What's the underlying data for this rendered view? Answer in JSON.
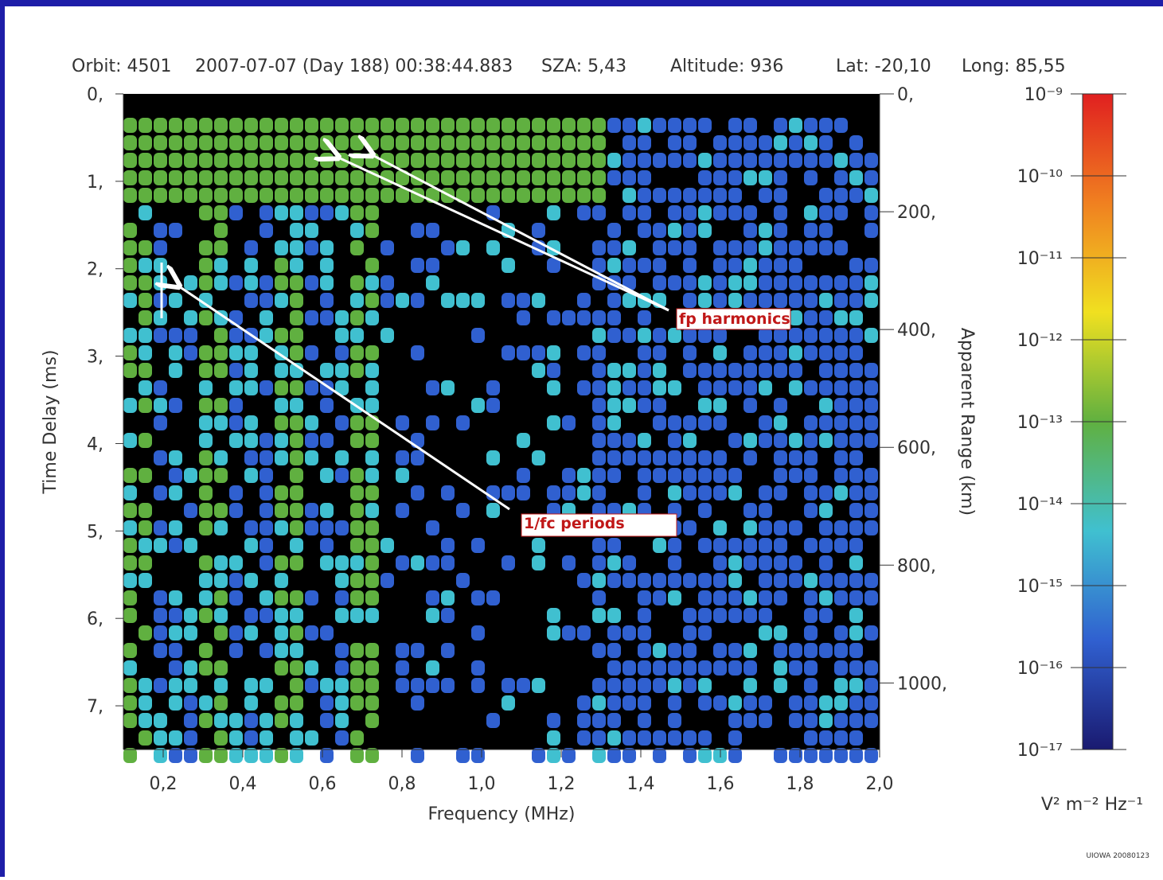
{
  "header": {
    "items": [
      "Orbit: 4501",
      "2007-07-07 (Day 188) 00:38:44.883",
      "SZA: 5,43",
      "Altitude: 936",
      "Lat: -20,10",
      "Long: 85,55"
    ]
  },
  "chart_data": {
    "type": "spectrogram",
    "x_label": "Frequency (MHz)",
    "y_label": "Time Delay (ms)",
    "y2_label": "Apparent Range (km)",
    "xlim": [
      0.1,
      2.0
    ],
    "xticks": [
      {
        "value": 0.2,
        "label": "0,2"
      },
      {
        "value": 0.4,
        "label": "0,4"
      },
      {
        "value": 0.6,
        "label": "0,6"
      },
      {
        "value": 0.8,
        "label": "0,8"
      },
      {
        "value": 1.0,
        "label": "1,0"
      },
      {
        "value": 1.2,
        "label": "1,2"
      },
      {
        "value": 1.4,
        "label": "1,4"
      },
      {
        "value": 1.6,
        "label": "1,6"
      },
      {
        "value": 1.8,
        "label": "1,8"
      },
      {
        "value": 2.0,
        "label": "2,0"
      }
    ],
    "ylim": [
      0,
      7.5
    ],
    "yticks": [
      {
        "value": 0,
        "label": "0,"
      },
      {
        "value": 1,
        "label": "1,"
      },
      {
        "value": 2,
        "label": "2,"
      },
      {
        "value": 3,
        "label": "3,"
      },
      {
        "value": 4,
        "label": "4,"
      },
      {
        "value": 5,
        "label": "5,"
      },
      {
        "value": 6,
        "label": "6,"
      },
      {
        "value": 7,
        "label": "7,"
      }
    ],
    "y2lim": [
      0,
      1113
    ],
    "y2ticks": [
      {
        "value": 0,
        "label": "0,"
      },
      {
        "value": 200,
        "label": "200,"
      },
      {
        "value": 400,
        "label": "400,"
      },
      {
        "value": 600,
        "label": "600,"
      },
      {
        "value": 800,
        "label": "800,"
      },
      {
        "value": 1000,
        "label": "1000,"
      }
    ],
    "colorbar": {
      "label": "V² m⁻² Hz⁻¹",
      "log_scale": true,
      "lim": [
        1e-09,
        1e-17
      ],
      "ticks": [
        {
          "value": 1e-09,
          "label": "10⁻⁹"
        },
        {
          "value": 1e-10,
          "label": "10⁻¹⁰"
        },
        {
          "value": 1e-11,
          "label": "10⁻¹¹"
        },
        {
          "value": 1e-12,
          "label": "10⁻¹²"
        },
        {
          "value": 1e-13,
          "label": "10⁻¹³"
        },
        {
          "value": 1e-14,
          "label": "10⁻¹⁴"
        },
        {
          "value": 1e-15,
          "label": "10⁻¹⁵"
        },
        {
          "value": 1e-16,
          "label": "10⁻¹⁶"
        },
        {
          "value": 1e-17,
          "label": "10⁻¹⁷"
        }
      ],
      "colors": [
        "#e02020",
        "#f08020",
        "#f0e020",
        "#60b040",
        "#40c0d0",
        "#3060d0",
        "#1a1a70"
      ]
    },
    "annotations": [
      "fp harmonics",
      "1/fc periods"
    ],
    "credit": "UIOWA 20080123"
  }
}
